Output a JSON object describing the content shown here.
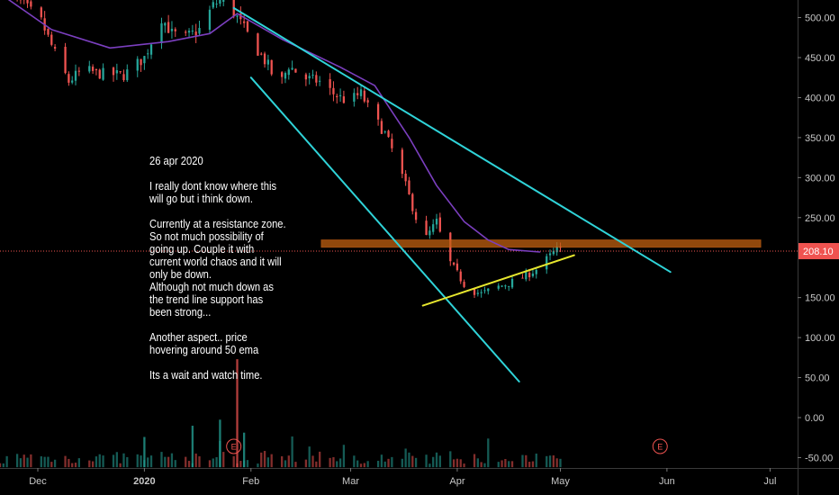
{
  "chart_data": {
    "type": "candlestick",
    "colors": {
      "up": "#26a69a",
      "down": "#ef5350",
      "ema": "#7b3fbf",
      "trendline": "#2fd3d8",
      "support_line": "#e6e62e",
      "resistance_zone": "#c06010",
      "price_line": "#ef5350"
    },
    "y_ticks": [
      "500.00",
      "450.00",
      "400.00",
      "350.00",
      "300.00",
      "250.00",
      "150.00",
      "100.00",
      "50.00",
      "0.00",
      "-50.00"
    ],
    "y_values": [
      500,
      450,
      400,
      350,
      300,
      250,
      150,
      100,
      50,
      0,
      -50
    ],
    "ylim": [
      -63,
      522
    ],
    "x_ticks": [
      "Dec",
      "2020",
      "Feb",
      "Mar",
      "Apr",
      "May",
      "Jun",
      "Jul"
    ],
    "x_tick_dates": [
      "2019-12-01",
      "2020-01-01",
      "2020-02-01",
      "2020-03-01",
      "2020-04-01",
      "2020-05-01",
      "2020-06-01",
      "2020-07-01"
    ],
    "xlim": [
      "2019-11-20",
      "2020-07-09"
    ],
    "last_price": "208.10",
    "last_price_value": 208.1,
    "resistance_zone": [
      213,
      222
    ],
    "earnings_markers": [
      {
        "label": "E",
        "date": "2020-01-27"
      },
      {
        "label": "E",
        "date": "2020-05-30"
      }
    ],
    "lines": [
      {
        "name": "ema",
        "points": [
          [
            "2019-11-20",
            530
          ],
          [
            "2019-12-05",
            485
          ],
          [
            "2019-12-22",
            462
          ],
          [
            "2020-01-08",
            470
          ],
          [
            "2020-01-20",
            480
          ],
          [
            "2020-01-28",
            505
          ],
          [
            "2020-02-10",
            473
          ],
          [
            "2020-02-27",
            438
          ],
          [
            "2020-03-08",
            415
          ],
          [
            "2020-03-18",
            350
          ],
          [
            "2020-03-26",
            290
          ],
          [
            "2020-04-03",
            245
          ],
          [
            "2020-04-10",
            222
          ],
          [
            "2020-04-16",
            210
          ],
          [
            "2020-04-25",
            207
          ]
        ]
      },
      {
        "name": "upper-trendline",
        "points": [
          [
            "2020-01-27",
            512
          ],
          [
            "2020-06-02",
            182
          ]
        ]
      },
      {
        "name": "lower-trendline",
        "points": [
          [
            "2020-02-01",
            425
          ],
          [
            "2020-04-19",
            45
          ]
        ]
      },
      {
        "name": "support-line",
        "points": [
          [
            "2020-03-22",
            140
          ],
          [
            "2020-05-05",
            203
          ]
        ]
      }
    ],
    "price_path": [
      [
        "2019-11-20",
        540
      ],
      [
        "2019-11-27",
        515
      ],
      [
        "2019-12-02",
        495
      ],
      [
        "2019-12-07",
        445
      ],
      [
        "2019-12-10",
        420
      ],
      [
        "2019-12-14",
        435
      ],
      [
        "2019-12-19",
        430
      ],
      [
        "2019-12-26",
        428
      ],
      [
        "2020-01-01",
        450
      ],
      [
        "2020-01-06",
        500
      ],
      [
        "2020-01-09",
        480
      ],
      [
        "2020-01-13",
        475
      ],
      [
        "2020-01-17",
        485
      ],
      [
        "2020-01-21",
        515
      ],
      [
        "2020-01-24",
        525
      ],
      [
        "2020-01-28",
        500
      ],
      [
        "2020-02-02",
        465
      ],
      [
        "2020-02-06",
        440
      ],
      [
        "2020-02-09",
        412
      ],
      [
        "2020-02-12",
        440
      ],
      [
        "2020-02-16",
        425
      ],
      [
        "2020-02-21",
        420
      ],
      [
        "2020-02-25",
        405
      ],
      [
        "2020-02-29",
        395
      ],
      [
        "2020-03-04",
        405
      ],
      [
        "2020-03-07",
        380
      ],
      [
        "2020-03-11",
        355
      ],
      [
        "2020-03-14",
        325
      ],
      [
        "2020-03-17",
        290
      ],
      [
        "2020-03-20",
        250
      ],
      [
        "2020-03-23",
        225
      ],
      [
        "2020-03-26",
        245
      ],
      [
        "2020-03-29",
        200
      ],
      [
        "2020-04-01",
        180
      ],
      [
        "2020-04-04",
        160
      ],
      [
        "2020-04-08",
        155
      ],
      [
        "2020-04-12",
        162
      ],
      [
        "2020-04-16",
        168
      ],
      [
        "2020-04-20",
        175
      ],
      [
        "2020-04-24",
        185
      ],
      [
        "2020-04-27",
        198
      ],
      [
        "2020-04-30",
        210
      ],
      [
        "2020-05-02",
        208
      ]
    ],
    "volume_max": 125,
    "volume_spikes": [
      {
        "date": "2020-01-28",
        "value": 125,
        "dir": "down"
      },
      {
        "date": "2020-01-30",
        "value": 40,
        "dir": "up"
      },
      {
        "date": "2020-01-01",
        "value": 35,
        "dir": "up"
      },
      {
        "date": "2020-01-15",
        "value": 48,
        "dir": "up"
      },
      {
        "date": "2020-01-23",
        "value": 55,
        "dir": "up"
      }
    ]
  },
  "annotation": {
    "date": "26 apr 2020",
    "p1_line1": "I really dont know where this",
    "p1_line2": "will go but i think down.",
    "p2_line1": "Currently at a resistance zone.",
    "p2_line2": "So not much possibility of",
    "p2_line3": "going up. Couple it with",
    "p2_line4": "current world chaos and it will",
    "p2_line5": "only be down.",
    "p2_line6": "Although not much down as",
    "p2_line7": "the trend line support has",
    "p2_line8": "been strong...",
    "p3_line1": "Another aspect.. price",
    "p3_line2": "hovering around 50 ema",
    "p4_line1": "Its a wait and watch time."
  }
}
